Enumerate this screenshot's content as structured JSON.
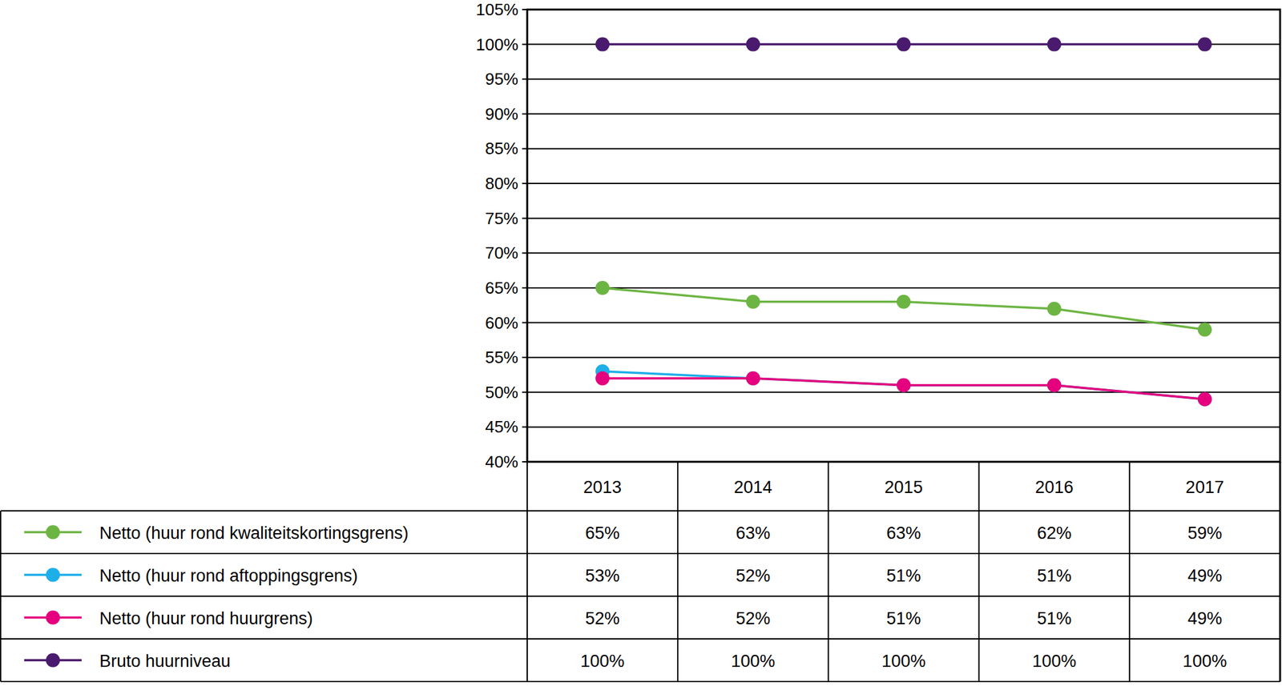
{
  "chart_data": {
    "type": "line",
    "categories": [
      "2013",
      "2014",
      "2015",
      "2016",
      "2017"
    ],
    "ylim": [
      40,
      105
    ],
    "yticks": [
      {
        "value": 40,
        "label": "40%"
      },
      {
        "value": 45,
        "label": "45%"
      },
      {
        "value": 50,
        "label": "50%"
      },
      {
        "value": 55,
        "label": "55%"
      },
      {
        "value": 60,
        "label": "60%"
      },
      {
        "value": 65,
        "label": "65%"
      },
      {
        "value": 70,
        "label": "70%"
      },
      {
        "value": 75,
        "label": "75%"
      },
      {
        "value": 80,
        "label": "80%"
      },
      {
        "value": 85,
        "label": "85%"
      },
      {
        "value": 90,
        "label": "90%"
      },
      {
        "value": 95,
        "label": "95%"
      },
      {
        "value": 100,
        "label": "100%"
      },
      {
        "value": 105,
        "label": "105%"
      }
    ],
    "grid": true,
    "marker": "circle",
    "series": [
      {
        "name": "Netto (huur rond kwaliteitskortingsgrens)",
        "color": "#6db543",
        "values": [
          65,
          63,
          63,
          62,
          59
        ],
        "value_labels": [
          "65%",
          "63%",
          "63%",
          "62%",
          "59%"
        ]
      },
      {
        "name": "Netto (huur rond aftoppingsgrens)",
        "color": "#1eaee8",
        "values": [
          53,
          52,
          51,
          51,
          49
        ],
        "value_labels": [
          "53%",
          "52%",
          "51%",
          "51%",
          "49%"
        ]
      },
      {
        "name": "Netto (huur rond huurgrens)",
        "color": "#e5007e",
        "values": [
          52,
          52,
          51,
          51,
          49
        ],
        "value_labels": [
          "52%",
          "52%",
          "51%",
          "51%",
          "49%"
        ]
      },
      {
        "name": "Bruto huurniveau",
        "color": "#4a1a6e",
        "values": [
          100,
          100,
          100,
          100,
          100
        ],
        "value_labels": [
          "100%",
          "100%",
          "100%",
          "100%",
          "100%"
        ]
      }
    ]
  }
}
